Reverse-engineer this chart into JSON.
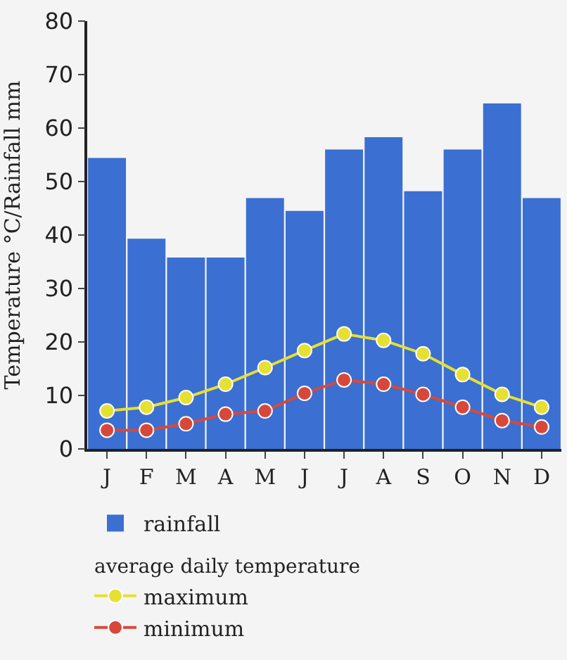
{
  "chart_data": {
    "type": "bar",
    "ylabel": "Temperature °C/Rainfall mm",
    "legend_title": "average daily temperature",
    "categories": [
      "J",
      "F",
      "M",
      "A",
      "M",
      "J",
      "J",
      "A",
      "S",
      "O",
      "N",
      "D"
    ],
    "series": [
      {
        "name": "rainfall",
        "color": "#3b6fd2",
        "values": [
          54.4,
          39.3,
          35.8,
          35.8,
          46.9,
          44.5,
          56,
          58.3,
          48.2,
          56,
          64.6,
          46.9
        ]
      },
      {
        "name": "maximum",
        "type": "line",
        "color": "#e6e032",
        "values": [
          7.1,
          7.8,
          9.6,
          12.1,
          15.2,
          18.4,
          21.5,
          20.3,
          17.8,
          13.9,
          10.2,
          7.8
        ]
      },
      {
        "name": "minimum",
        "type": "line",
        "color": "#d8483a",
        "values": [
          3.5,
          3.5,
          4.7,
          6.5,
          7.1,
          10.4,
          12.9,
          12.1,
          10.2,
          7.8,
          5.3,
          4.1
        ]
      }
    ],
    "ylim": [
      0,
      80
    ],
    "yticks": [
      0,
      10,
      20,
      30,
      40,
      50,
      60,
      70,
      80
    ],
    "grid": false,
    "legend": "bottom",
    "marker": "circle",
    "line_style": "solid"
  }
}
